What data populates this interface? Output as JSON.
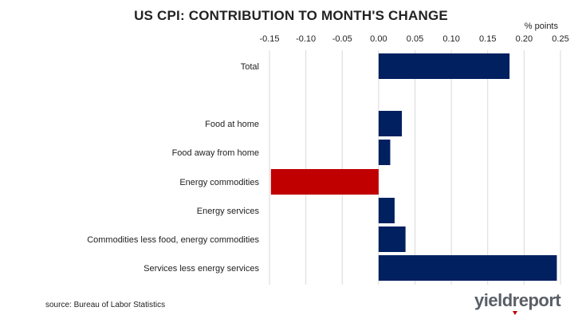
{
  "chart_data": {
    "type": "bar",
    "orientation": "horizontal",
    "title": "US CPI: CONTRIBUTION TO MONTH'S CHANGE",
    "unit_label": "% points",
    "xlim": [
      -0.15,
      0.25
    ],
    "x_ticks": [
      "-0.15",
      "-0.10",
      "-0.05",
      "0.00",
      "0.05",
      "0.10",
      "0.15",
      "0.20",
      "0.25"
    ],
    "grid": true,
    "tick_position": "top",
    "categories": [
      "Total",
      "Food at home",
      "Food away from home",
      "Energy commodities",
      "Energy services",
      "Commodities less food, energy commodities",
      "Services less energy services"
    ],
    "values": [
      0.18,
      0.032,
      0.016,
      -0.148,
      0.022,
      0.037,
      0.245
    ],
    "bar_colors": [
      "#002060",
      "#002060",
      "#002060",
      "#c00000",
      "#002060",
      "#002060",
      "#002060"
    ]
  },
  "source": "source: Bureau of Labor Statistics",
  "logo": {
    "part1": "yield",
    "part2": "report"
  }
}
